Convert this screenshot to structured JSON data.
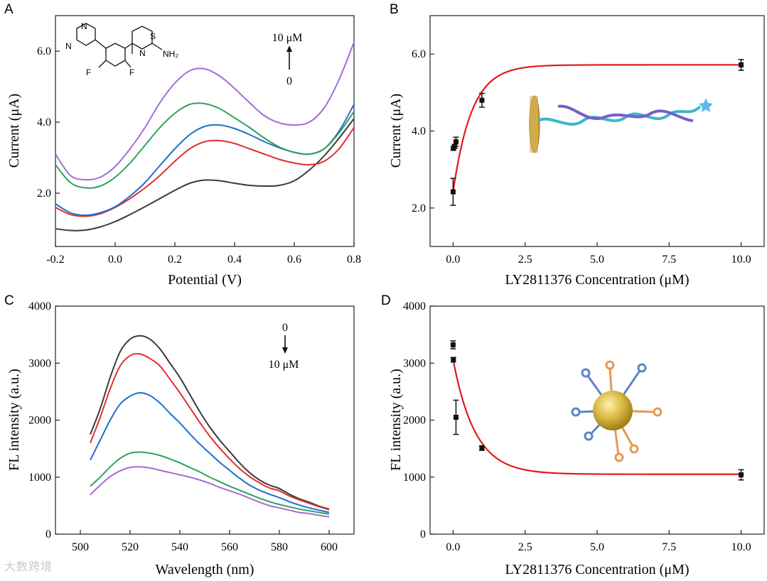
{
  "colors": {
    "black": "#3b3b3b",
    "red": "#e03030",
    "blue": "#1f6fd0",
    "green": "#2ea25a",
    "purple": "#a66bd6",
    "fit_red": "#e21a1a",
    "gold": "#c9a035",
    "dna_teal": "#3bb7c9",
    "dna_purple": "#7b5cc9"
  },
  "watermark": "大数跨境",
  "chart_data": [
    {
      "panel": "A",
      "type": "line",
      "xlabel": "Potential (V)",
      "ylabel": "Current (μA)",
      "xlim": [
        -0.2,
        0.8
      ],
      "ylim": [
        0.5,
        7.0
      ],
      "xticks": [
        "-0.2",
        "0.0",
        "0.2",
        "0.4",
        "0.6",
        "0.8"
      ],
      "yticks": [
        "2.0",
        "4.0",
        "6.0"
      ],
      "annotation_top": "10 μM",
      "annotation_bottom": "0",
      "structure_labels": [
        "N",
        "N",
        "F",
        "F",
        "S",
        "N",
        "NH₂"
      ],
      "series": [
        {
          "color": "#3b3b3b",
          "x": [
            -0.2,
            -0.15,
            -0.1,
            -0.05,
            0.0,
            0.05,
            0.1,
            0.15,
            0.2,
            0.25,
            0.3,
            0.35,
            0.4,
            0.45,
            0.5,
            0.55,
            0.6,
            0.65,
            0.7,
            0.75,
            0.8
          ],
          "y": [
            1.0,
            0.95,
            0.96,
            1.05,
            1.2,
            1.4,
            1.62,
            1.85,
            2.08,
            2.28,
            2.37,
            2.35,
            2.28,
            2.22,
            2.2,
            2.22,
            2.35,
            2.65,
            3.05,
            3.55,
            4.1
          ]
        },
        {
          "color": "#e03030",
          "x": [
            -0.2,
            -0.15,
            -0.1,
            -0.05,
            0.0,
            0.05,
            0.1,
            0.15,
            0.2,
            0.25,
            0.3,
            0.35,
            0.4,
            0.45,
            0.5,
            0.55,
            0.6,
            0.65,
            0.7,
            0.75,
            0.8
          ],
          "y": [
            1.6,
            1.4,
            1.35,
            1.42,
            1.6,
            1.85,
            2.15,
            2.5,
            2.9,
            3.25,
            3.45,
            3.48,
            3.4,
            3.25,
            3.1,
            2.95,
            2.85,
            2.8,
            2.9,
            3.25,
            3.85
          ]
        },
        {
          "color": "#1f6fd0",
          "x": [
            -0.2,
            -0.15,
            -0.1,
            -0.05,
            0.0,
            0.05,
            0.1,
            0.15,
            0.2,
            0.25,
            0.3,
            0.35,
            0.4,
            0.45,
            0.5,
            0.55,
            0.6,
            0.65,
            0.7,
            0.75,
            0.8
          ],
          "y": [
            1.7,
            1.45,
            1.38,
            1.45,
            1.62,
            1.92,
            2.3,
            2.78,
            3.25,
            3.65,
            3.88,
            3.92,
            3.82,
            3.65,
            3.45,
            3.28,
            3.15,
            3.1,
            3.25,
            3.75,
            4.5
          ]
        },
        {
          "color": "#2ea25a",
          "x": [
            -0.2,
            -0.15,
            -0.1,
            -0.05,
            0.0,
            0.05,
            0.1,
            0.15,
            0.2,
            0.25,
            0.3,
            0.35,
            0.4,
            0.45,
            0.5,
            0.55,
            0.6,
            0.65,
            0.7,
            0.75,
            0.8
          ],
          "y": [
            2.8,
            2.3,
            2.15,
            2.2,
            2.45,
            2.85,
            3.35,
            3.85,
            4.25,
            4.5,
            4.52,
            4.38,
            4.12,
            3.85,
            3.55,
            3.3,
            3.15,
            3.1,
            3.25,
            3.7,
            4.3
          ]
        },
        {
          "color": "#a66bd6",
          "x": [
            -0.2,
            -0.15,
            -0.1,
            -0.05,
            0.0,
            0.05,
            0.1,
            0.15,
            0.2,
            0.25,
            0.3,
            0.35,
            0.4,
            0.45,
            0.5,
            0.55,
            0.6,
            0.65,
            0.7,
            0.75,
            0.8
          ],
          "y": [
            3.1,
            2.5,
            2.38,
            2.45,
            2.75,
            3.25,
            3.85,
            4.55,
            5.1,
            5.45,
            5.5,
            5.3,
            4.95,
            4.55,
            4.18,
            3.98,
            3.92,
            4.0,
            4.4,
            5.2,
            6.25
          ]
        }
      ]
    },
    {
      "panel": "B",
      "type": "scatter",
      "xlabel": "LY2811376 Concentration (μM)",
      "ylabel": "Current (μA)",
      "xlim": [
        -0.8,
        10.8
      ],
      "ylim": [
        1.0,
        7.0
      ],
      "xticks": [
        "0.0",
        "2.5",
        "5.0",
        "7.5",
        "10.0"
      ],
      "yticks": [
        "2.0",
        "4.0",
        "6.0"
      ],
      "points": [
        {
          "x": 0.0,
          "y": 2.42,
          "err": 0.35
        },
        {
          "x": 0.01,
          "y": 3.55,
          "err": 0.05
        },
        {
          "x": 0.05,
          "y": 3.6,
          "err": 0.05
        },
        {
          "x": 0.1,
          "y": 3.72,
          "err": 0.12
        },
        {
          "x": 1.0,
          "y": 4.8,
          "err": 0.18
        },
        {
          "x": 10.0,
          "y": 5.72,
          "err": 0.14
        }
      ],
      "fit": {
        "color": "#e21a1a",
        "y0": 2.42,
        "ymax": 5.72,
        "k": 1.55
      }
    },
    {
      "panel": "C",
      "type": "line",
      "xlabel": "Wavelength (nm)",
      "ylabel": "FL intensity (a.u.)",
      "xlim": [
        490,
        610
      ],
      "ylim": [
        0,
        4000
      ],
      "xticks": [
        "500",
        "520",
        "540",
        "560",
        "580",
        "600"
      ],
      "yticks": [
        "0",
        "1000",
        "2000",
        "3000",
        "4000"
      ],
      "annotation_top": "0",
      "annotation_bottom": "10 μM",
      "series": [
        {
          "color": "#3b3b3b",
          "x": [
            504,
            508,
            512,
            516,
            520,
            524,
            528,
            532,
            536,
            540,
            544,
            548,
            552,
            556,
            560,
            564,
            568,
            572,
            576,
            580,
            584,
            588,
            592,
            596,
            600
          ],
          "y": [
            1750,
            2200,
            2750,
            3200,
            3420,
            3480,
            3420,
            3250,
            3000,
            2750,
            2450,
            2150,
            1880,
            1650,
            1450,
            1250,
            1080,
            950,
            860,
            800,
            700,
            620,
            560,
            490,
            440
          ]
        },
        {
          "color": "#e03030",
          "x": [
            504,
            508,
            512,
            516,
            520,
            524,
            528,
            532,
            536,
            540,
            544,
            548,
            552,
            556,
            560,
            564,
            568,
            572,
            576,
            580,
            584,
            588,
            592,
            596,
            600
          ],
          "y": [
            1600,
            2050,
            2550,
            2950,
            3130,
            3160,
            3080,
            2950,
            2720,
            2480,
            2220,
            1960,
            1720,
            1510,
            1320,
            1150,
            1010,
            900,
            810,
            760,
            670,
            600,
            540,
            480,
            430
          ]
        },
        {
          "color": "#1f6fd0",
          "x": [
            504,
            508,
            512,
            516,
            520,
            524,
            528,
            532,
            536,
            540,
            544,
            548,
            552,
            556,
            560,
            564,
            568,
            572,
            576,
            580,
            584,
            588,
            592,
            596,
            600
          ],
          "y": [
            1300,
            1650,
            2000,
            2280,
            2420,
            2480,
            2430,
            2300,
            2120,
            1950,
            1760,
            1580,
            1420,
            1260,
            1120,
            980,
            860,
            770,
            700,
            640,
            570,
            510,
            460,
            420,
            380
          ]
        },
        {
          "color": "#2ea25a",
          "x": [
            504,
            508,
            512,
            516,
            520,
            524,
            528,
            532,
            536,
            540,
            544,
            548,
            552,
            556,
            560,
            564,
            568,
            572,
            576,
            580,
            584,
            588,
            592,
            596,
            600
          ],
          "y": [
            840,
            1000,
            1180,
            1330,
            1420,
            1440,
            1420,
            1380,
            1320,
            1250,
            1170,
            1090,
            1000,
            920,
            840,
            770,
            700,
            630,
            570,
            520,
            480,
            440,
            410,
            380,
            350
          ]
        },
        {
          "color": "#a66bd6",
          "x": [
            504,
            508,
            512,
            516,
            520,
            524,
            528,
            532,
            536,
            540,
            544,
            548,
            552,
            556,
            560,
            564,
            568,
            572,
            576,
            580,
            584,
            588,
            592,
            596,
            600
          ],
          "y": [
            690,
            860,
            1010,
            1110,
            1170,
            1180,
            1160,
            1120,
            1080,
            1040,
            1000,
            950,
            890,
            820,
            760,
            700,
            630,
            560,
            500,
            460,
            420,
            380,
            360,
            330,
            300
          ]
        }
      ]
    },
    {
      "panel": "D",
      "type": "scatter",
      "xlabel": "LY2811376 Concentration (μM)",
      "ylabel": "FL intensity (a.u.)",
      "xlim": [
        -0.8,
        10.8
      ],
      "ylim": [
        0,
        4000
      ],
      "xticks": [
        "0.0",
        "2.5",
        "5.0",
        "7.5",
        "10.0"
      ],
      "yticks": [
        "0",
        "1000",
        "2000",
        "3000",
        "4000"
      ],
      "points": [
        {
          "x": 0.0,
          "y": 3320,
          "err": 70
        },
        {
          "x": 0.01,
          "y": 3060,
          "err": 40
        },
        {
          "x": 0.1,
          "y": 2050,
          "err": 300
        },
        {
          "x": 1.0,
          "y": 1510,
          "err": 40
        },
        {
          "x": 10.0,
          "y": 1040,
          "err": 90
        }
      ],
      "fit": {
        "color": "#e21a1a",
        "y0": 3060,
        "ymin": 1050,
        "k": 1.3
      }
    }
  ],
  "panel_labels": [
    "A",
    "B",
    "C",
    "D"
  ]
}
